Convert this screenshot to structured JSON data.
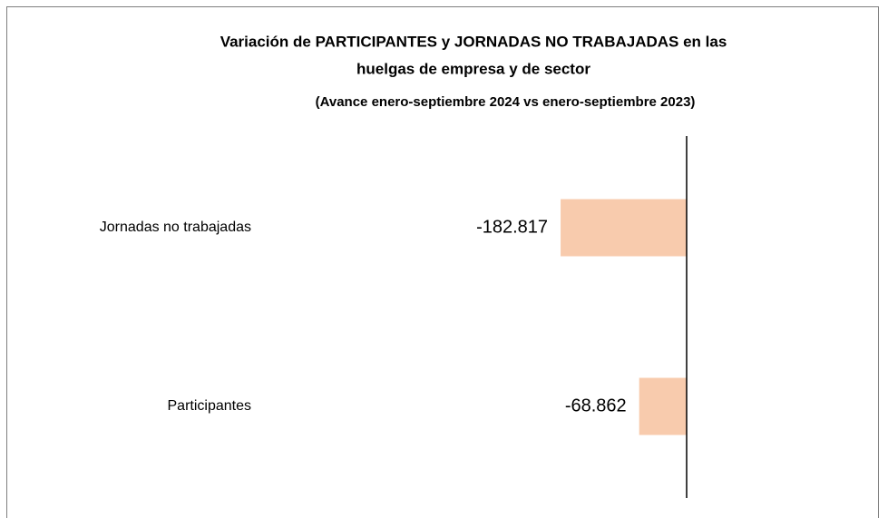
{
  "chart_data": {
    "type": "barh",
    "title": [
      "Variación de PARTICIPANTES  y JORNADAS NO TRABAJADAS en las",
      "huelgas de empresa y de sector"
    ],
    "subtitle": "(Avance enero-septiembre 2024 vs enero-septiembre 2023)",
    "categories": [
      "Jornadas no trabajadas",
      "Participantes"
    ],
    "values": [
      -182817,
      -68862
    ],
    "value_labels": [
      "-182.817",
      "-68.862"
    ],
    "color": "#f8cbad",
    "xlim": [
      -900000,
      200000
    ]
  }
}
